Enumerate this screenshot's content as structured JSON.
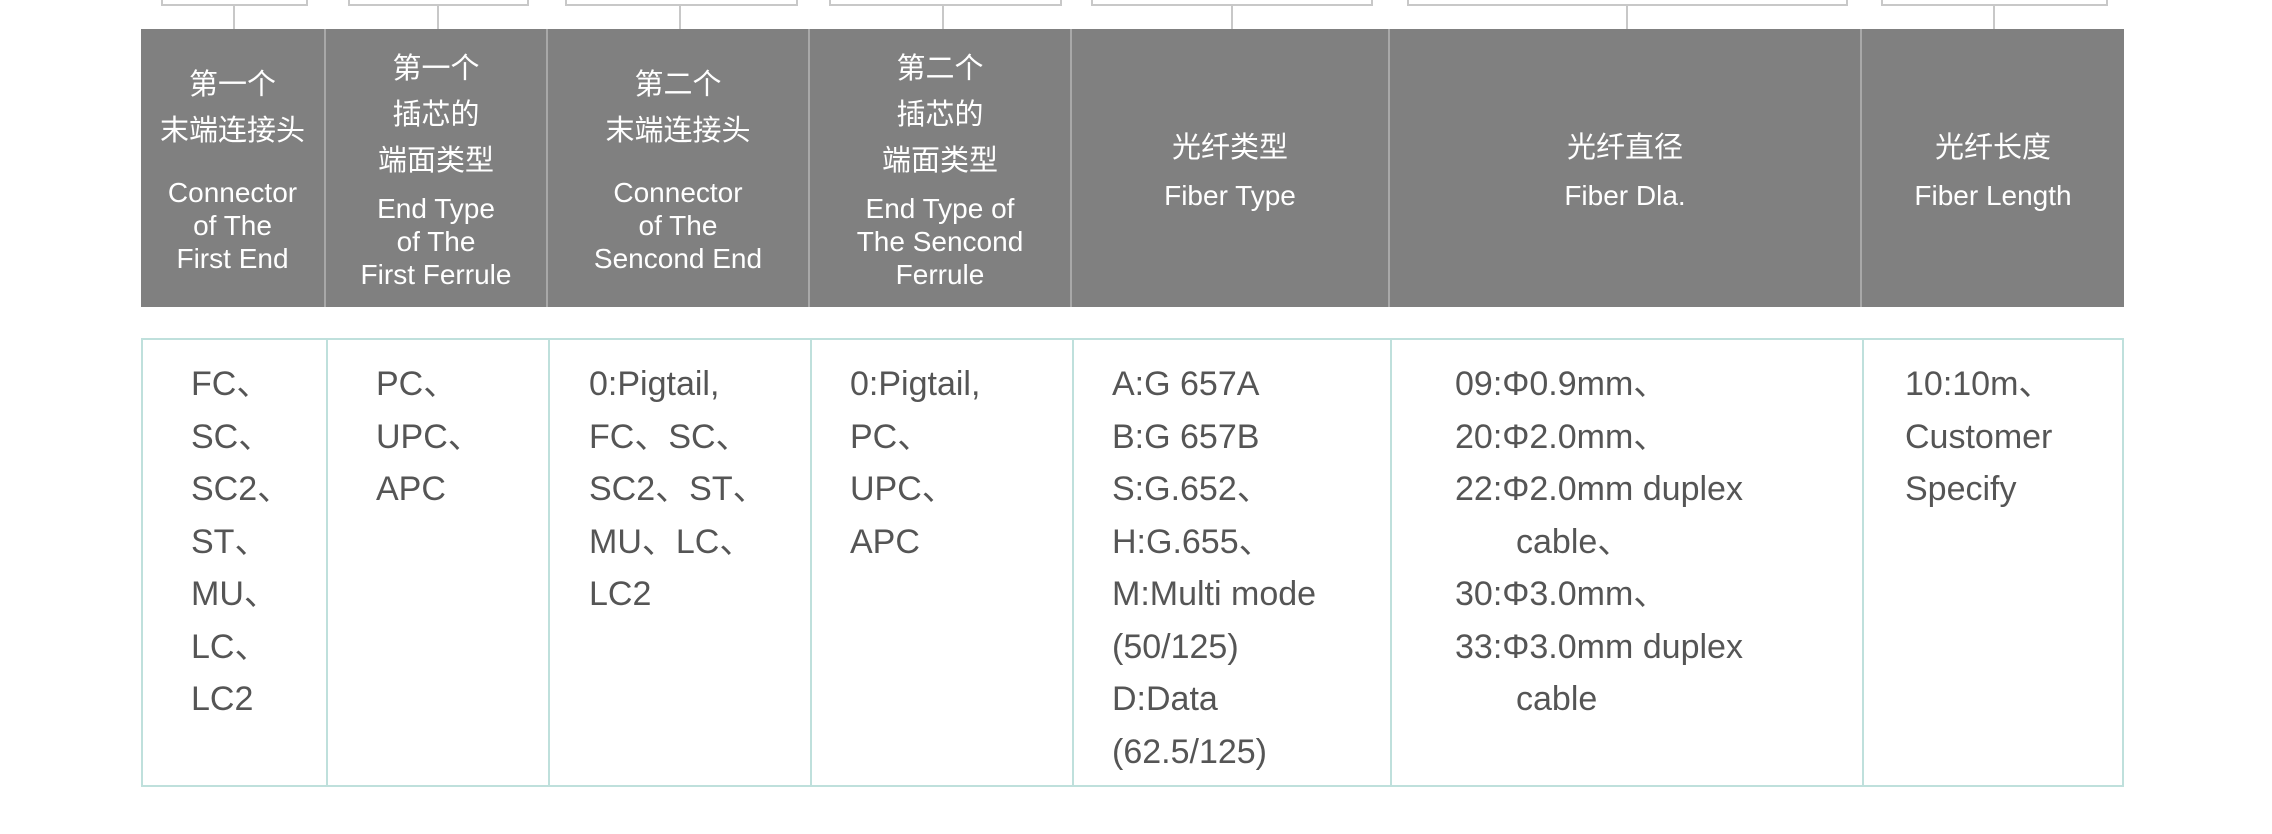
{
  "columns": [
    {
      "zh": "第一个\n末端连接头",
      "en": "Connector\nof The\nFirst End",
      "values": [
        "FC、",
        "SC、",
        "SC2、",
        "ST、",
        "MU、",
        "LC、",
        "LC2"
      ]
    },
    {
      "zh": "第一个\n插芯的\n端面类型",
      "en": "End Type\nof The\nFirst Ferrule",
      "values": [
        "PC、",
        "UPC、",
        "APC"
      ]
    },
    {
      "zh": "第二个\n末端连接头",
      "en": "Connector\nof The\nSencond End",
      "values": [
        "0:Pigtail,",
        "FC、SC、",
        "SC2、ST、",
        "MU、LC、",
        "LC2"
      ]
    },
    {
      "zh": "第二个\n插芯的\n端面类型",
      "en": "End Type of\nThe Sencond\nFerrule",
      "values": [
        "0:Pigtail,",
        "PC、",
        "UPC、",
        "APC"
      ]
    },
    {
      "zh": "光纤类型",
      "en": "Fiber Type",
      "values": [
        "A:G 657A",
        "B:G 657B",
        "S:G.652、",
        "H:G.655、",
        "M:Multi mode",
        "(50/125)",
        "D:Data",
        "(62.5/125)"
      ]
    },
    {
      "zh": "光纤直径",
      "en": "Fiber Dla.",
      "values": [
        "09:Φ0.9mm、",
        "20:Φ2.0mm、",
        "22:Φ2.0mm duplex",
        "cable、",
        "30:Φ3.0mm、",
        "33:Φ3.0mm duplex",
        "cable"
      ]
    },
    {
      "zh": "光纤长度",
      "en": "Fiber Length",
      "values": [
        "10:10m、",
        "Customer",
        "Specify"
      ]
    }
  ],
  "colors": {
    "header_bg": "#808080",
    "body_border": "#bfe0dc",
    "text": "#555555"
  }
}
